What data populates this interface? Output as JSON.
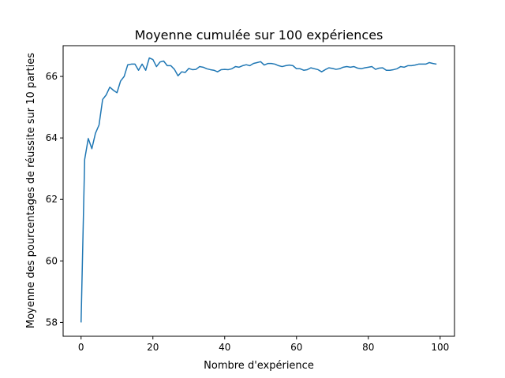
{
  "chart_data": {
    "type": "line",
    "title": "Moyenne cumulée sur 100 expériences",
    "xlabel": "Nombre d'expérience",
    "ylabel": "Moyenne des pourcentages de réussite sur 10 parties",
    "xlim": [
      -5,
      104
    ],
    "ylim": [
      57.55,
      67.0
    ],
    "xticks": [
      0,
      20,
      40,
      60,
      80,
      100
    ],
    "yticks": [
      58,
      60,
      62,
      64,
      66
    ],
    "grid": false,
    "series": [
      {
        "color": "#1f77b4",
        "x": [
          0,
          1,
          2,
          3,
          4,
          5,
          6,
          7,
          8,
          9,
          10,
          11,
          12,
          13,
          14,
          15,
          16,
          17,
          18,
          19,
          20,
          21,
          22,
          23,
          24,
          25,
          26,
          27,
          28,
          29,
          30,
          31,
          32,
          33,
          34,
          35,
          36,
          37,
          38,
          39,
          40,
          41,
          42,
          43,
          44,
          45,
          46,
          47,
          48,
          49,
          50,
          51,
          52,
          53,
          54,
          55,
          56,
          57,
          58,
          59,
          60,
          61,
          62,
          63,
          64,
          65,
          66,
          67,
          68,
          69,
          70,
          71,
          72,
          73,
          74,
          75,
          76,
          77,
          78,
          79,
          80,
          81,
          82,
          83,
          84,
          85,
          86,
          87,
          88,
          89,
          90,
          91,
          92,
          93,
          94,
          95,
          96,
          97,
          98,
          99
        ],
        "y": [
          58.0,
          63.3,
          63.98,
          63.65,
          64.15,
          64.42,
          65.25,
          65.4,
          65.65,
          65.55,
          65.47,
          65.85,
          66.0,
          66.38,
          66.4,
          66.4,
          66.2,
          66.4,
          66.2,
          66.6,
          66.55,
          66.32,
          66.47,
          66.5,
          66.35,
          66.35,
          66.23,
          66.02,
          66.15,
          66.13,
          66.26,
          66.22,
          66.23,
          66.32,
          66.3,
          66.25,
          66.22,
          66.2,
          66.15,
          66.22,
          66.23,
          66.22,
          66.25,
          66.32,
          66.3,
          66.35,
          66.38,
          66.35,
          66.42,
          66.45,
          66.48,
          66.37,
          66.42,
          66.42,
          66.4,
          66.35,
          66.32,
          66.35,
          66.37,
          66.35,
          66.25,
          66.25,
          66.2,
          66.22,
          66.28,
          66.25,
          66.22,
          66.15,
          66.22,
          66.28,
          66.26,
          66.23,
          66.25,
          66.3,
          66.32,
          66.3,
          66.32,
          66.27,
          66.25,
          66.28,
          66.3,
          66.32,
          66.23,
          66.27,
          66.28,
          66.2,
          66.2,
          66.22,
          66.25,
          66.32,
          66.3,
          66.35,
          66.35,
          66.37,
          66.4,
          66.4,
          66.4,
          66.45,
          66.42,
          66.4
        ]
      }
    ]
  }
}
